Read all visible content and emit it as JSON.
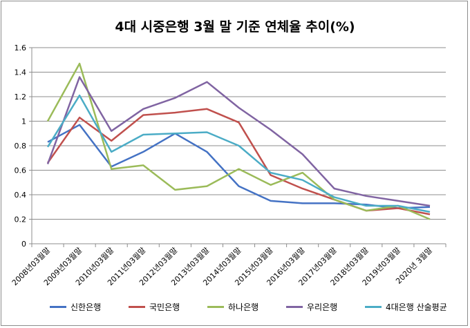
{
  "chart_data": {
    "type": "line",
    "title": "4대 시중은행 3월 말 기준 연체율 추이(%)",
    "categories": [
      "2008년03월말",
      "2009년03월말",
      "2010년03월말",
      "2011년03월말",
      "2012년03월말",
      "2013년03월말",
      "2014년03월말",
      "2015년03월말",
      "2016년03월말",
      "2017년03월말",
      "2018년03월말",
      "2019년03월말",
      "2020년 3월말"
    ],
    "ylim": [
      0,
      1.6
    ],
    "yticks": [
      "0",
      "0.2",
      "0.4",
      "0.6",
      "0.8",
      "1",
      "1.2",
      "1.4",
      "1.6"
    ],
    "grid": true,
    "legend_position": "bottom",
    "series": [
      {
        "name": "신한은행",
        "color": "#4472c4",
        "values": [
          0.83,
          0.97,
          0.63,
          0.75,
          0.9,
          0.75,
          0.47,
          0.35,
          0.33,
          0.33,
          0.32,
          0.29,
          0.3
        ]
      },
      {
        "name": "국민은행",
        "color": "#c0504d",
        "values": [
          0.66,
          1.03,
          0.84,
          1.05,
          1.07,
          1.1,
          0.99,
          0.56,
          0.45,
          0.36,
          0.27,
          0.29,
          0.24
        ]
      },
      {
        "name": "하나은행",
        "color": "#9bbb59",
        "values": [
          1.0,
          1.47,
          0.61,
          0.64,
          0.44,
          0.47,
          0.61,
          0.48,
          0.58,
          0.36,
          0.27,
          0.31,
          0.2
        ]
      },
      {
        "name": "우리은행",
        "color": "#8064a2",
        "values": [
          0.65,
          1.36,
          0.92,
          1.1,
          1.19,
          1.32,
          1.11,
          0.93,
          0.73,
          0.45,
          0.39,
          0.35,
          0.31
        ]
      },
      {
        "name": "4대은행 산술평균",
        "color": "#4bacc6",
        "values": [
          0.79,
          1.21,
          0.75,
          0.89,
          0.9,
          0.91,
          0.8,
          0.58,
          0.52,
          0.38,
          0.31,
          0.31,
          0.26
        ]
      }
    ]
  }
}
